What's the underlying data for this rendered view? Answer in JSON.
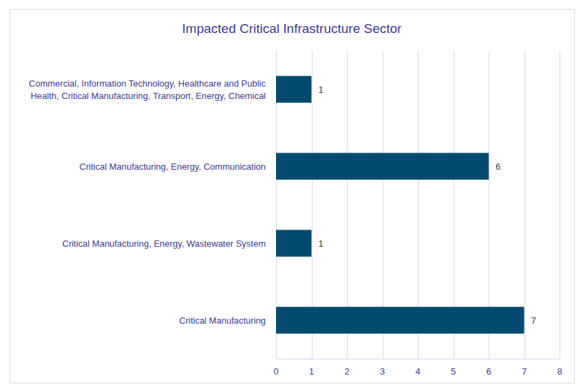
{
  "chart_data": {
    "type": "bar",
    "orientation": "horizontal",
    "title": "Impacted Critical Infrastructure Sector",
    "categories": [
      "Commercial, Information Technology, Healthcare and Public Health, Critical Manufacturing, Transport, Energy, Chemical",
      "Critical Manufacturing, Energy, Communication",
      "Critical Manufacturing, Energy, Wastewater System",
      "Critical Manufacturing"
    ],
    "values": [
      1,
      6,
      1,
      7
    ],
    "color": "#024b6e",
    "xlim": [
      0,
      8
    ],
    "xticks": [
      0,
      1,
      2,
      3,
      4,
      5,
      6,
      7,
      8
    ],
    "grid": true,
    "data_labels": true
  }
}
